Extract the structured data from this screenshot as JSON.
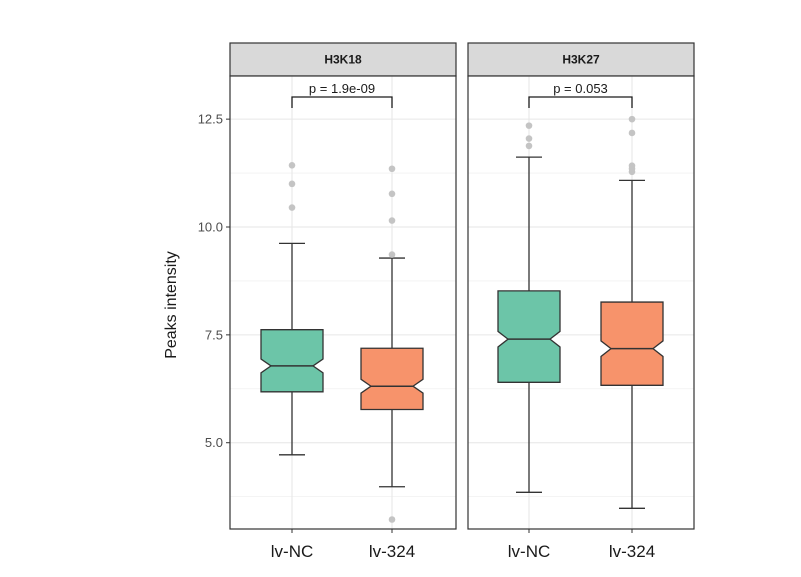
{
  "chart_data": {
    "type": "boxplot",
    "ylabel": "Peaks intensity",
    "ylim": [
      3.0,
      13.5
    ],
    "yticks": [
      5.0,
      7.5,
      10.0,
      12.5
    ],
    "ytick_labels": [
      "5.0",
      "7.5",
      "10.0",
      "12.5"
    ],
    "grid": true,
    "colors": {
      "lv-NC": "#6cc5a8",
      "lv-324": "#f7936b"
    },
    "panels": [
      {
        "strip": "H3K18",
        "pvalue": "p = 1.9e-09",
        "groups": [
          {
            "label": "lv-NC",
            "whisker_low": 4.72,
            "q1": 6.18,
            "median": 6.78,
            "q3": 7.62,
            "whisker_high": 9.62,
            "notch_low": 6.62,
            "notch_high": 6.94,
            "outliers": [
              10.45,
              11.0,
              11.43
            ]
          },
          {
            "label": "lv-324",
            "whisker_low": 3.98,
            "q1": 5.77,
            "median": 6.31,
            "q3": 7.19,
            "whisker_high": 9.28,
            "notch_low": 6.15,
            "notch_high": 6.47,
            "outliers": [
              3.22,
              9.36,
              10.15,
              10.77,
              11.35
            ]
          }
        ]
      },
      {
        "strip": "H3K27",
        "pvalue": "p = 0.053",
        "groups": [
          {
            "label": "lv-NC",
            "whisker_low": 3.85,
            "q1": 6.4,
            "median": 7.4,
            "q3": 8.52,
            "whisker_high": 11.62,
            "notch_low": 7.22,
            "notch_high": 7.58,
            "outliers": [
              11.88,
              12.05,
              12.35
            ]
          },
          {
            "label": "lv-324",
            "whisker_low": 3.48,
            "q1": 6.33,
            "median": 7.18,
            "q3": 8.26,
            "whisker_high": 11.08,
            "notch_low": 7.0,
            "notch_high": 7.36,
            "outliers": [
              11.28,
              11.35,
              11.42,
              12.18,
              12.5
            ]
          }
        ]
      }
    ]
  }
}
